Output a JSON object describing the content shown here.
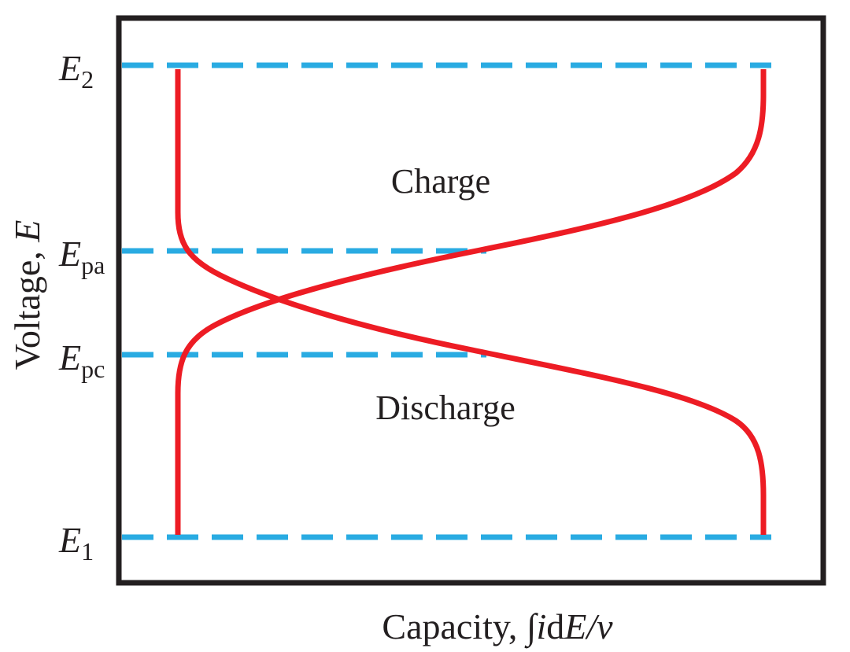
{
  "colors": {
    "frame": "#231f20",
    "curve": "#ed1c24",
    "dashed_level": "#29abe2"
  },
  "labels": {
    "y_axis_prefix": "Voltage, ",
    "y_axis_var": "E",
    "x_axis_prefix": "Capacity, ",
    "x_axis_integral": "∫",
    "x_axis_i": "i",
    "x_axis_d": "d",
    "x_axis_E": "E",
    "x_axis_rest": "/v",
    "charge": "Charge",
    "discharge": "Discharge"
  },
  "levels": [
    {
      "symbol": "E",
      "subscript": "2"
    },
    {
      "symbol": "E",
      "subscript": "pa"
    },
    {
      "symbol": "E",
      "subscript": "pc"
    },
    {
      "symbol": "E",
      "subscript": "1"
    }
  ]
}
